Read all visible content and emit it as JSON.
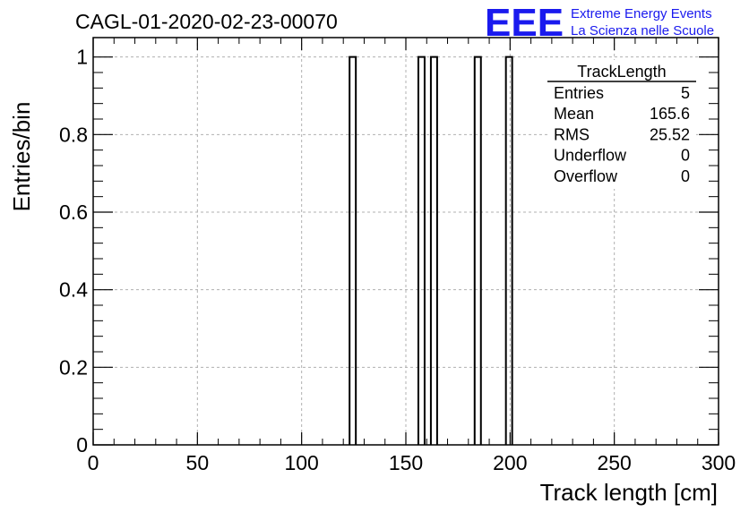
{
  "header": {
    "run_title": "CAGL-01-2020-02-23-00070",
    "logo_text": "EEE",
    "logo_line1": "Extreme Energy Events",
    "logo_line2": "La Scienza nelle Scuole",
    "brand_color": "#1a1aee"
  },
  "stats_box": {
    "title": "TrackLength",
    "rows": [
      {
        "label": "Entries",
        "value": "5"
      },
      {
        "label": "Mean",
        "value": "165.6"
      },
      {
        "label": "RMS",
        "value": "25.52"
      },
      {
        "label": "Underflow",
        "value": "0"
      },
      {
        "label": "Overflow",
        "value": "0"
      }
    ]
  },
  "chart_data": {
    "type": "bar",
    "xlabel": "Track length [cm]",
    "ylabel": "Entries/bin",
    "xlim": [
      0,
      300
    ],
    "ylim": [
      0,
      1.05
    ],
    "grid": true,
    "bin_width": 3,
    "bins": [
      {
        "x_low": 123,
        "x_high": 126,
        "count": 1
      },
      {
        "x_low": 156,
        "x_high": 159,
        "count": 1
      },
      {
        "x_low": 162,
        "x_high": 165,
        "count": 1
      },
      {
        "x_low": 183,
        "x_high": 186,
        "count": 1
      },
      {
        "x_low": 198,
        "x_high": 201,
        "count": 1
      }
    ],
    "x_ticks": [
      "0",
      "50",
      "100",
      "150",
      "200",
      "250",
      "300"
    ],
    "y_ticks": [
      "0",
      "0.2",
      "0.4",
      "0.6",
      "0.8",
      "1"
    ]
  }
}
